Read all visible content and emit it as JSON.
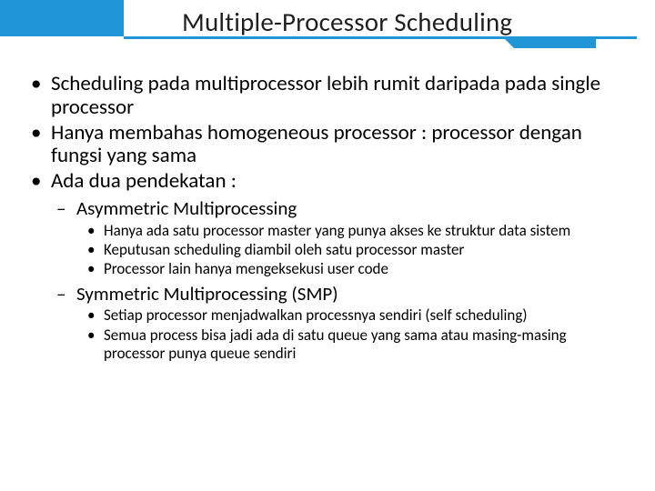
{
  "header": {
    "title": "Multiple-Processor Scheduling",
    "accent_color": "#2196d6"
  },
  "bullets": [
    {
      "text": "Scheduling pada multiprocessor lebih rumit daripada pada single processor"
    },
    {
      "text": "Hanya membahas homogeneous processor : processor dengan fungsi yang sama"
    },
    {
      "text": "Ada dua pendekatan :"
    }
  ],
  "sub1": {
    "title": "Asymmetric Multiprocessing",
    "items": [
      "Hanya ada satu processor master yang punya akses ke struktur data sistem",
      "Keputusan scheduling diambil oleh satu processor master",
      "Processor lain hanya mengeksekusi user code"
    ]
  },
  "sub2": {
    "title": "Symmetric Multiprocessing (SMP)",
    "items": [
      "Setiap processor menjadwalkan processnya sendiri (self scheduling)",
      "Semua process bisa jadi ada di satu queue yang sama atau masing-masing processor punya queue sendiri"
    ]
  }
}
